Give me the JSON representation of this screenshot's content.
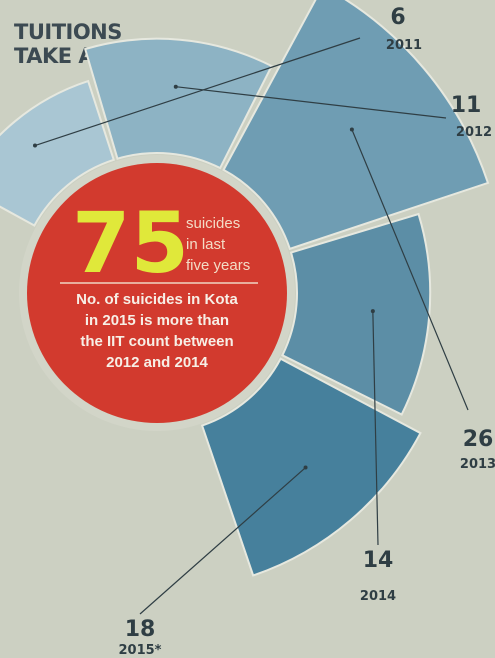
{
  "header": {
    "title_line1": "TUITIONS",
    "title_line2": "TAKE A TOLL"
  },
  "callout": {
    "big_number": "75",
    "unit_line1": "suicides",
    "unit_line2": "in last",
    "unit_line3": "five years",
    "note_line1": "No. of suicides in Kota",
    "note_line2": "in 2015 is more than",
    "note_line3": "the IIT count between",
    "note_line4": "2012 and 2014"
  },
  "colors": {
    "background": "#ccd0c2",
    "circle": "#d23a2e",
    "big_number": "#e0e83a",
    "segment_colors": [
      "#a9c6d3",
      "#8db3c4",
      "#6f9db3",
      "#5c8ea6",
      "#46809c"
    ]
  },
  "chart_data": {
    "type": "pie",
    "title": "TUITIONS TAKE A TOLL",
    "categories": [
      "2011",
      "2012",
      "2013",
      "2014",
      "2015*"
    ],
    "values": [
      6,
      11,
      26,
      14,
      18
    ],
    "value_labels": [
      "6",
      "11",
      "26",
      "14",
      "18"
    ]
  }
}
